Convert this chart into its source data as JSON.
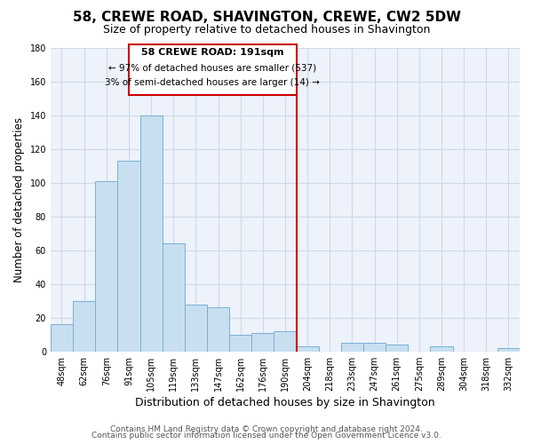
{
  "title": "58, CREWE ROAD, SHAVINGTON, CREWE, CW2 5DW",
  "subtitle": "Size of property relative to detached houses in Shavington",
  "xlabel": "Distribution of detached houses by size in Shavington",
  "ylabel": "Number of detached properties",
  "bin_labels": [
    "48sqm",
    "62sqm",
    "76sqm",
    "91sqm",
    "105sqm",
    "119sqm",
    "133sqm",
    "147sqm",
    "162sqm",
    "176sqm",
    "190sqm",
    "204sqm",
    "218sqm",
    "233sqm",
    "247sqm",
    "261sqm",
    "275sqm",
    "289sqm",
    "304sqm",
    "318sqm",
    "332sqm"
  ],
  "bar_heights": [
    16,
    30,
    101,
    113,
    140,
    64,
    28,
    26,
    10,
    11,
    12,
    3,
    0,
    5,
    5,
    4,
    0,
    3,
    0,
    0,
    2
  ],
  "bar_color": "#c8dff0",
  "bar_edge_color": "#7ab0d4",
  "vline_x": 11,
  "vline_color": "#cc0000",
  "ylim": [
    0,
    180
  ],
  "yticks": [
    0,
    20,
    40,
    60,
    80,
    100,
    120,
    140,
    160,
    180
  ],
  "annotation_title": "58 CREWE ROAD: 191sqm",
  "annotation_line1": "← 97% of detached houses are smaller (537)",
  "annotation_line2": "3% of semi-detached houses are larger (14) →",
  "annotation_box_color": "#ffffff",
  "annotation_box_edge": "#cc0000",
  "footer_line1": "Contains HM Land Registry data © Crown copyright and database right 2024.",
  "footer_line2": "Contains public sector information licensed under the Open Government Licence v3.0.",
  "title_fontsize": 11,
  "subtitle_fontsize": 9,
  "xlabel_fontsize": 9,
  "ylabel_fontsize": 8.5,
  "tick_fontsize": 7,
  "footer_fontsize": 6.5,
  "annotation_title_fontsize": 8,
  "annotation_text_fontsize": 7.5,
  "grid_color": "#d0d8e8",
  "bg_color": "#edf2fb"
}
